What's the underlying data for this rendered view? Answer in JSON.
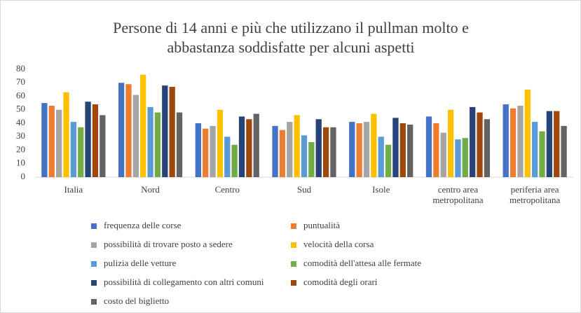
{
  "chart_data": {
    "type": "bar",
    "title": [
      "Persone di 14 anni e più che utilizzano il pullman molto e",
      "abbastanza soddisfatte per alcuni aspetti"
    ],
    "categories": [
      "Italia",
      "Nord",
      "Centro",
      "Sud",
      "Isole",
      "centro area metropolitana",
      "periferia area metropolitana"
    ],
    "series": [
      {
        "name": "frequenza delle corse",
        "color": "#4472c4",
        "values": [
          55,
          70,
          40,
          38,
          41,
          45,
          54
        ]
      },
      {
        "name": "puntualità",
        "color": "#ed7d31",
        "values": [
          53,
          69,
          36,
          35,
          40,
          40,
          51
        ]
      },
      {
        "name": "possibilità di trovare posto a sedere",
        "color": "#a5a5a5",
        "values": [
          50,
          61,
          38,
          41,
          41,
          33,
          53
        ]
      },
      {
        "name": "velocità della corsa",
        "color": "#ffc000",
        "values": [
          63,
          76,
          50,
          46,
          47,
          50,
          65
        ]
      },
      {
        "name": "pulizia delle vetture",
        "color": "#5b9bd5",
        "values": [
          41,
          52,
          30,
          31,
          30,
          28,
          41
        ]
      },
      {
        "name": "comodità dell'attesa alle fermate",
        "color": "#70ad47",
        "values": [
          37,
          48,
          24,
          26,
          24,
          29,
          34
        ]
      },
      {
        "name": "possibilità di collegamento con altri comuni",
        "color": "#264478",
        "values": [
          56,
          68,
          45,
          43,
          44,
          52,
          49
        ]
      },
      {
        "name": "comodità degli orari",
        "color": "#9e480e",
        "values": [
          54,
          67,
          43,
          37,
          40,
          48,
          49
        ]
      },
      {
        "name": "costo del biglietto",
        "color": "#636363",
        "values": [
          46,
          48,
          47,
          37,
          39,
          43,
          38
        ]
      }
    ],
    "ylim": [
      0,
      80
    ],
    "yticks": [
      0,
      10,
      20,
      30,
      40,
      50,
      60,
      70,
      80
    ],
    "grid": false,
    "legend": "bottom"
  }
}
